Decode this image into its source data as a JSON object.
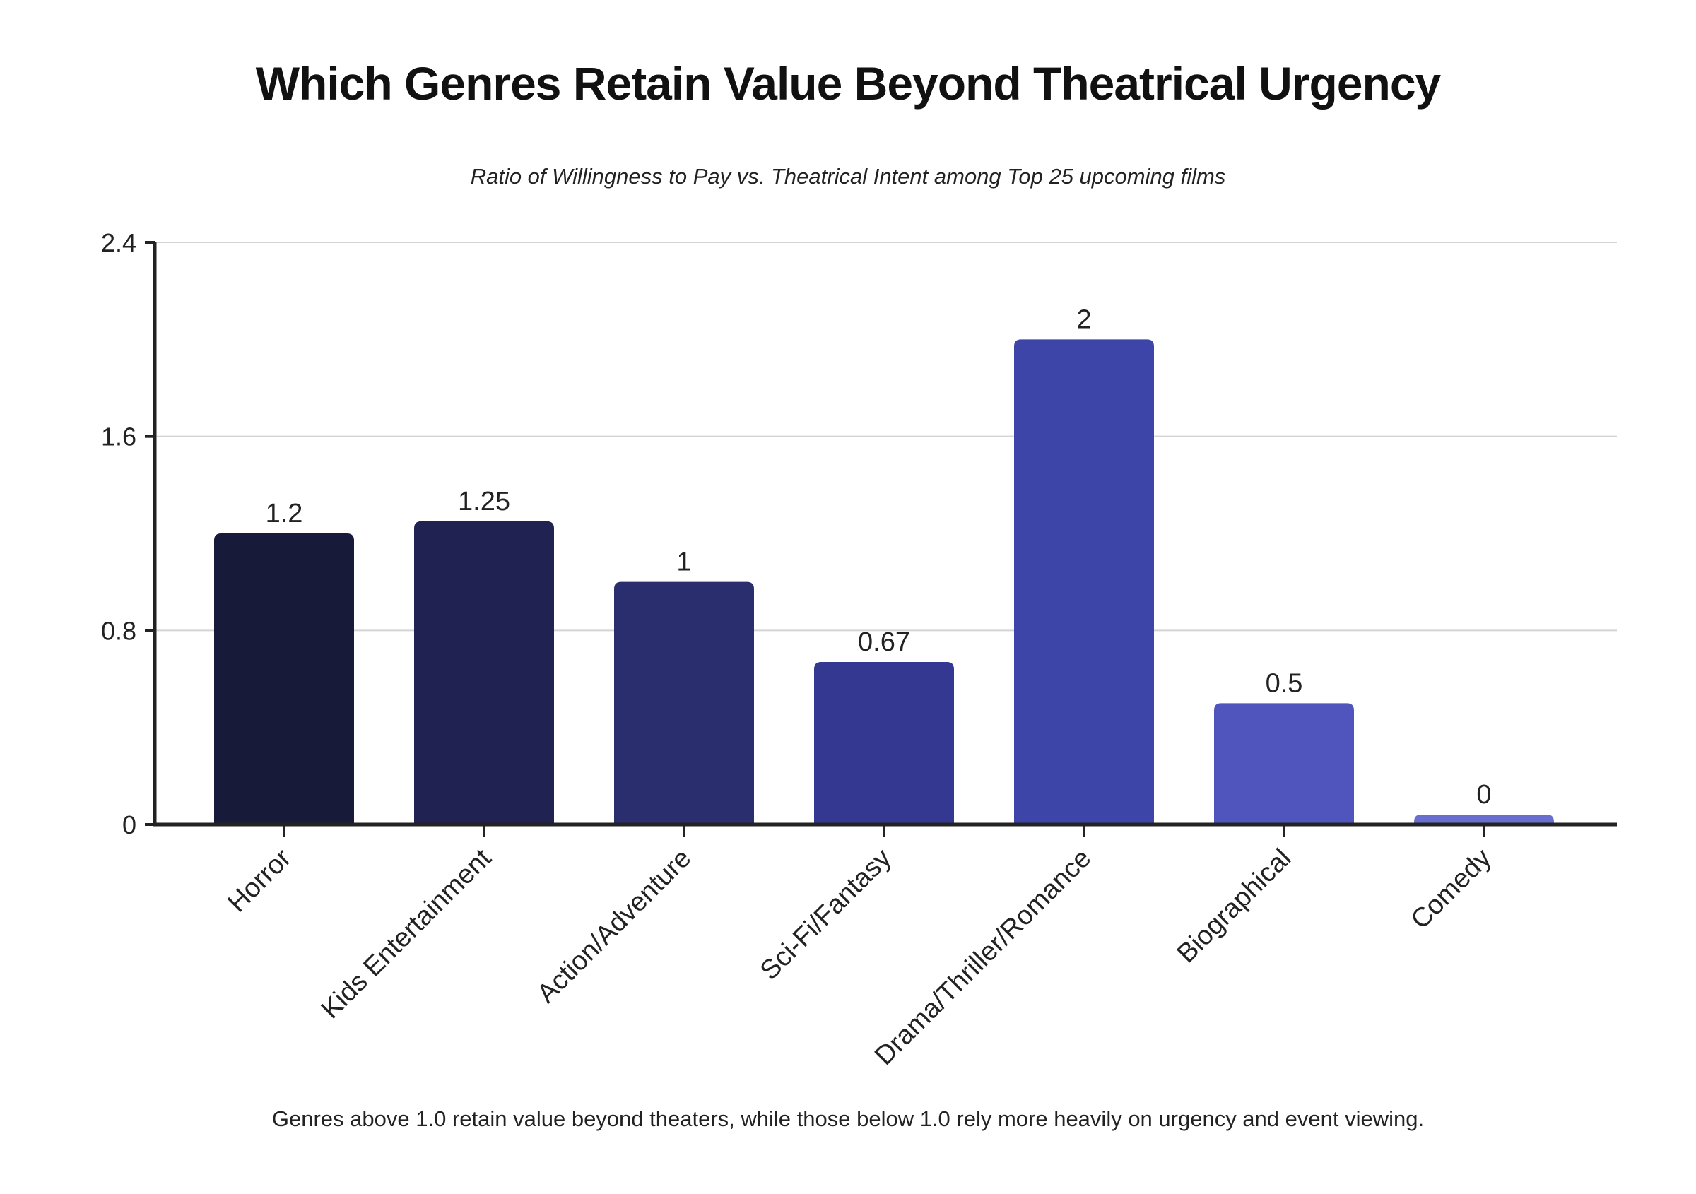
{
  "chart_data": {
    "type": "bar",
    "title": "Which Genres Retain Value Beyond Theatrical Urgency",
    "subtitle": "Ratio of Willingness to Pay vs. Theatrical Intent among Top 25 upcoming films",
    "footnote": "Genres above 1.0 retain value beyond theaters, while those below 1.0 rely more heavily on urgency and event viewing.",
    "xlabel": "",
    "ylabel": "",
    "categories": [
      "Horror",
      "Kids Entertainment",
      "Action/Adventure",
      "Sci-Fi/Fantasy",
      "Drama/Thriller/Romance",
      "Biographical",
      "Comedy"
    ],
    "values": [
      1.2,
      1.25,
      1,
      0.67,
      2,
      0.5,
      0
    ],
    "value_labels": [
      "1.2",
      "1.25",
      "1",
      "0.67",
      "2",
      "0.5",
      "0"
    ],
    "colors": [
      "#181a3a",
      "#202352",
      "#2a2e6e",
      "#343891",
      "#3e45a8",
      "#5055bd",
      "#6a6fcf"
    ],
    "ylim": [
      0,
      2.4
    ],
    "yticks": [
      0,
      0.8,
      1.6,
      2.4
    ],
    "ytick_labels": [
      "0",
      "0.8",
      "1.6",
      "2.4"
    ],
    "grid": true,
    "legend": "none"
  }
}
